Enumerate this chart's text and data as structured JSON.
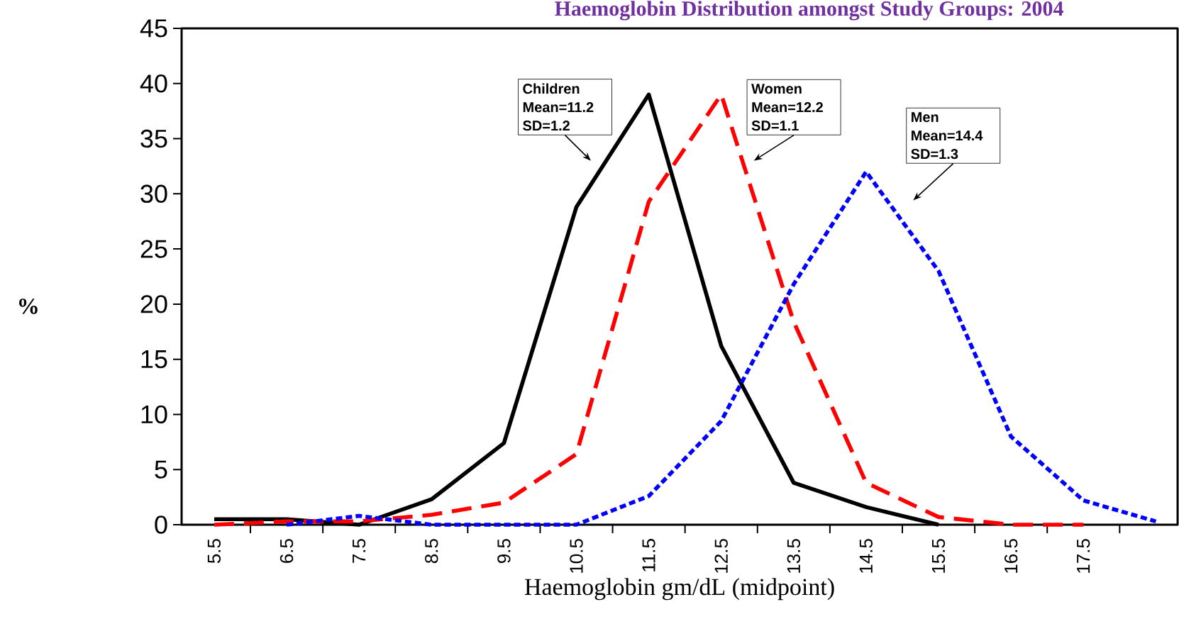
{
  "chart_data": {
    "type": "line",
    "title": "Haemoglobin Distribution amongst Study Groups: 2004",
    "xlabel": "Haemoglobin gm/dL (midpoint)",
    "ylabel": "%",
    "categories": [
      "5.5",
      "6.5",
      "7.5",
      "8.5",
      "9.5",
      "10.5",
      "11.5",
      "12.5",
      "13.5",
      "14.5",
      "15.5",
      "16.5",
      "17.5",
      null
    ],
    "series": [
      {
        "color": "#000000",
        "line_style": "solid",
        "values": [
          0.5,
          0.5,
          0,
          2.3,
          7.4,
          28.8,
          39,
          16.2,
          3.8,
          1.6,
          0,
          null,
          null,
          null
        ]
      },
      {
        "color": "#ff0000",
        "line_style": "dashed",
        "values": [
          0,
          0.3,
          0.3,
          0.9,
          2,
          6.4,
          29.3,
          39,
          18.4,
          3.8,
          0.7,
          0,
          0,
          null
        ]
      },
      {
        "color": "#0000ff",
        "line_style": "dotted",
        "values": [
          null,
          0,
          0.8,
          0,
          0,
          0,
          2.6,
          9.4,
          21.8,
          32,
          23,
          8,
          2.2,
          0.3
        ]
      }
    ],
    "ylim": [
      0,
      45
    ],
    "yticks": [
      0,
      5,
      10,
      15,
      20,
      25,
      30,
      35,
      40,
      45
    ],
    "grid": false,
    "marker": "none",
    "annotations": [
      "Children Mean=11.2 SD=1.2",
      "Women Mean=12.2 SD=1.1",
      "Men Mean=14.4 SD=1.3"
    ]
  }
}
